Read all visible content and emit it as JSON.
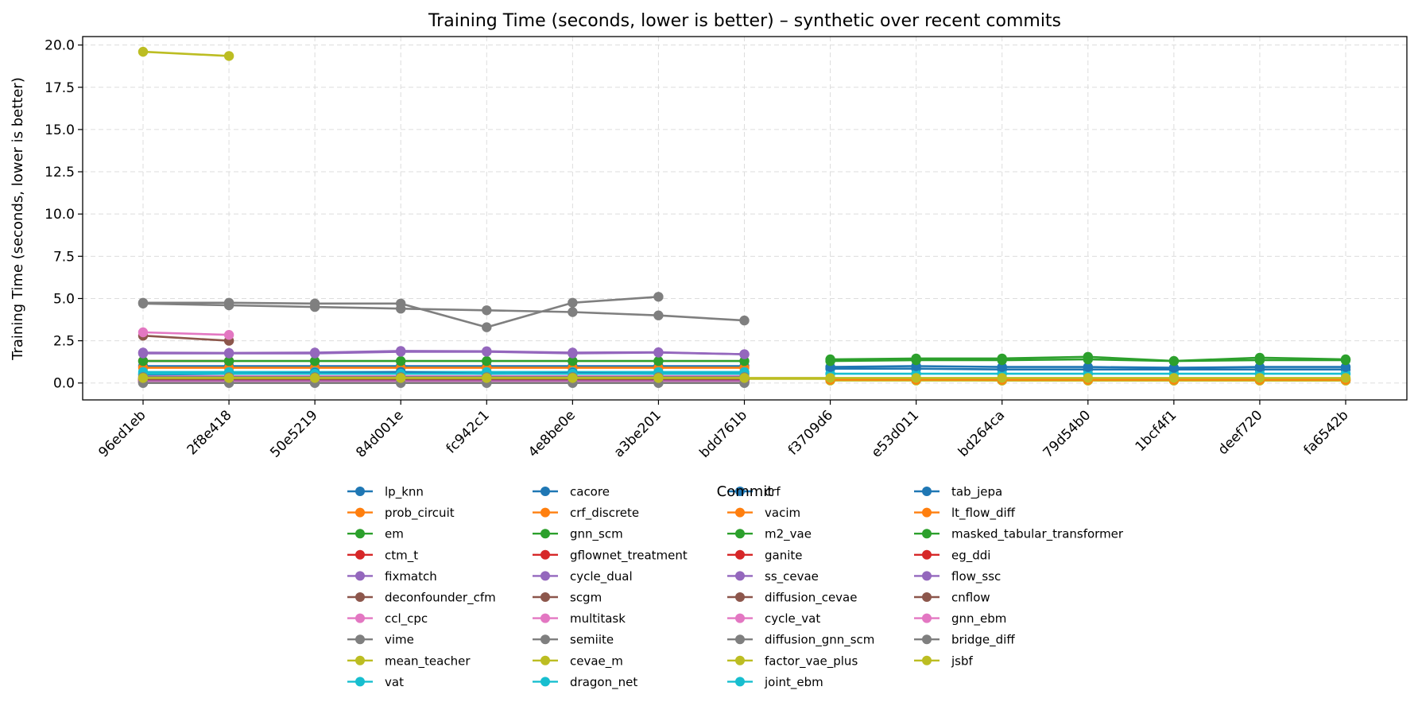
{
  "chart_data": {
    "type": "line",
    "title": "Training Time (seconds, lower is better) – synthetic over recent commits",
    "xlabel": "Commit",
    "ylabel": "Training Time (seconds, lower is better)",
    "ylim": [
      -1.0,
      20.5
    ],
    "yticks": [
      "0.0",
      "2.5",
      "5.0",
      "7.5",
      "10.0",
      "12.5",
      "15.0",
      "17.5",
      "20.0"
    ],
    "grid": true,
    "legend_placement": "bottom-center",
    "legend_columns": 4,
    "categories": [
      "96ed1eb",
      "2f8e418",
      "50e5219",
      "84d001e",
      "fc942c1",
      "4e8be0e",
      "a3be201",
      "bdd761b",
      "f3709d6",
      "e53d011",
      "bd264ca",
      "79d54b0",
      "1bcf4f1",
      "deef720",
      "fa6542b"
    ],
    "series": [
      {
        "name": "lp_knn",
        "color": "#1f77b4",
        "values": [
          1.0,
          1.0,
          1.0,
          1.0,
          1.0,
          1.0,
          1.0,
          1.0,
          null,
          null,
          null,
          null,
          null,
          null,
          null
        ]
      },
      {
        "name": "prob_circuit",
        "color": "#ff7f0e",
        "values": [
          0.9,
          0.9,
          0.9,
          0.9,
          0.9,
          0.9,
          0.9,
          0.9,
          null,
          null,
          null,
          null,
          null,
          null,
          null
        ]
      },
      {
        "name": "em",
        "color": "#2ca02c",
        "values": [
          0.02,
          0.02,
          0.02,
          0.02,
          0.02,
          0.02,
          0.02,
          0.02,
          null,
          null,
          null,
          null,
          null,
          null,
          null
        ]
      },
      {
        "name": "ctm_t",
        "color": "#d62728",
        "values": [
          1.3,
          1.3,
          null,
          null,
          null,
          null,
          null,
          null,
          null,
          null,
          null,
          null,
          null,
          null,
          null
        ]
      },
      {
        "name": "fixmatch",
        "color": "#9467bd",
        "values": [
          1.8,
          1.78,
          1.8,
          1.9,
          1.88,
          1.8,
          1.82,
          1.7,
          null,
          null,
          null,
          null,
          null,
          null,
          null
        ]
      },
      {
        "name": "deconfounder_cfm",
        "color": "#8c564b",
        "values": [
          2.8,
          2.5,
          null,
          null,
          null,
          null,
          null,
          null,
          null,
          null,
          null,
          null,
          null,
          null,
          null
        ]
      },
      {
        "name": "ccl_cpc",
        "color": "#e377c2",
        "values": [
          0.4,
          0.4,
          0.4,
          0.4,
          0.4,
          0.4,
          0.4,
          0.4,
          null,
          null,
          null,
          null,
          null,
          null,
          null
        ]
      },
      {
        "name": "vime",
        "color": "#7f7f7f",
        "values": [
          4.7,
          4.6,
          4.5,
          4.4,
          4.3,
          4.2,
          4.0,
          3.7,
          null,
          null,
          null,
          null,
          null,
          null,
          null
        ]
      },
      {
        "name": "mean_teacher",
        "color": "#bcbd22",
        "values": [
          19.6,
          19.35,
          null,
          null,
          null,
          null,
          null,
          null,
          null,
          null,
          null,
          null,
          null,
          null,
          null
        ]
      },
      {
        "name": "vat",
        "color": "#17becf",
        "values": [
          0.65,
          0.65,
          0.65,
          0.65,
          0.65,
          0.65,
          0.65,
          0.65,
          null,
          null,
          null,
          null,
          null,
          null,
          null
        ]
      },
      {
        "name": "cacore",
        "color": "#1f77b4",
        "values": [
          0.5,
          0.55,
          0.6,
          0.65,
          0.55,
          0.6,
          0.55,
          0.55,
          null,
          null,
          null,
          null,
          null,
          null,
          null
        ]
      },
      {
        "name": "crf_discrete",
        "color": "#ff7f0e",
        "values": [
          0.1,
          0.1,
          0.1,
          0.1,
          0.1,
          0.1,
          0.1,
          0.1,
          null,
          null,
          null,
          null,
          null,
          null,
          null
        ]
      },
      {
        "name": "gnn_scm",
        "color": "#2ca02c",
        "values": [
          1.3,
          1.3,
          1.3,
          1.3,
          1.3,
          1.3,
          1.3,
          1.3,
          null,
          null,
          null,
          null,
          null,
          null,
          null
        ]
      },
      {
        "name": "gflownet_treatment",
        "color": "#d62728",
        "values": [
          0.2,
          0.2,
          0.2,
          0.2,
          0.2,
          0.2,
          0.2,
          0.2,
          null,
          null,
          null,
          null,
          null,
          null,
          null
        ]
      },
      {
        "name": "cycle_dual",
        "color": "#9467bd",
        "values": [
          1.75,
          1.75,
          1.75,
          1.85,
          1.85,
          1.75,
          1.8,
          1.7,
          null,
          null,
          null,
          null,
          null,
          null,
          null
        ]
      },
      {
        "name": "scgm",
        "color": "#8c564b",
        "values": [
          0.3,
          0.3,
          0.3,
          0.3,
          0.3,
          0.3,
          0.3,
          0.3,
          null,
          null,
          null,
          null,
          null,
          null,
          null
        ]
      },
      {
        "name": "multitask",
        "color": "#e377c2",
        "values": [
          3.0,
          2.85,
          null,
          null,
          null,
          null,
          null,
          null,
          null,
          null,
          null,
          null,
          null,
          null,
          null
        ]
      },
      {
        "name": "semiite",
        "color": "#7f7f7f",
        "values": [
          4.75,
          4.75,
          4.7,
          4.7,
          3.3,
          4.75,
          5.1,
          null,
          null,
          null,
          null,
          null,
          null,
          null,
          null
        ]
      },
      {
        "name": "cevae_m",
        "color": "#bcbd22",
        "values": [
          0.25,
          0.25,
          0.25,
          0.25,
          0.25,
          0.25,
          0.25,
          0.25,
          0.25,
          0.25,
          0.25,
          0.25,
          0.25,
          0.25,
          0.25
        ]
      },
      {
        "name": "dragon_net",
        "color": "#17becf",
        "values": [
          0.55,
          0.55,
          0.55,
          0.55,
          0.55,
          0.55,
          0.55,
          0.55,
          null,
          null,
          null,
          null,
          null,
          null,
          null
        ]
      },
      {
        "name": "crf",
        "color": "#1f77b4",
        "values": [
          null,
          null,
          null,
          null,
          null,
          null,
          null,
          null,
          0.85,
          0.85,
          0.8,
          0.8,
          0.8,
          0.8,
          0.8
        ]
      },
      {
        "name": "vacim",
        "color": "#ff7f0e",
        "values": [
          null,
          null,
          null,
          null,
          null,
          null,
          null,
          null,
          0.2,
          0.2,
          0.15,
          0.15,
          0.15,
          0.15,
          0.15
        ]
      },
      {
        "name": "m2_vae",
        "color": "#2ca02c",
        "values": [
          null,
          null,
          null,
          null,
          null,
          null,
          null,
          null,
          1.4,
          1.45,
          1.45,
          1.55,
          1.3,
          1.5,
          1.4
        ]
      },
      {
        "name": "ganite",
        "color": "#d62728",
        "values": [
          0.05,
          0.05,
          0.05,
          0.05,
          0.05,
          0.05,
          0.05,
          0.05,
          null,
          null,
          null,
          null,
          null,
          null,
          null
        ]
      },
      {
        "name": "ss_cevae",
        "color": "#9467bd",
        "values": [
          0.15,
          0.15,
          0.15,
          0.15,
          0.15,
          0.15,
          0.15,
          0.15,
          null,
          null,
          null,
          null,
          null,
          null,
          null
        ]
      },
      {
        "name": "diffusion_cevae",
        "color": "#8c564b",
        "values": [
          0.2,
          0.2,
          0.2,
          0.2,
          0.2,
          0.2,
          0.2,
          0.2,
          null,
          null,
          null,
          null,
          null,
          null,
          null
        ]
      },
      {
        "name": "cycle_vat",
        "color": "#e377c2",
        "values": [
          0.1,
          0.1,
          0.1,
          0.1,
          0.1,
          0.1,
          0.1,
          0.1,
          null,
          null,
          null,
          null,
          null,
          null,
          null
        ]
      },
      {
        "name": "diffusion_gnn_scm",
        "color": "#7f7f7f",
        "values": [
          0.35,
          0.35,
          0.35,
          0.35,
          0.35,
          0.35,
          0.35,
          0.35,
          null,
          null,
          null,
          null,
          null,
          null,
          null
        ]
      },
      {
        "name": "factor_vae_plus",
        "color": "#bcbd22",
        "values": [
          null,
          null,
          null,
          null,
          null,
          null,
          null,
          null,
          0.15,
          0.15,
          0.15,
          0.15,
          0.15,
          0.15,
          0.15
        ]
      },
      {
        "name": "joint_ebm",
        "color": "#17becf",
        "values": [
          null,
          null,
          null,
          null,
          null,
          null,
          null,
          null,
          0.55,
          0.55,
          0.55,
          0.55,
          0.55,
          0.55,
          0.55
        ]
      },
      {
        "name": "tab_jepa",
        "color": "#1f77b4",
        "values": [
          null,
          null,
          null,
          null,
          null,
          null,
          null,
          null,
          0.95,
          1.0,
          0.95,
          0.95,
          0.9,
          0.95,
          0.95
        ]
      },
      {
        "name": "lt_flow_diff",
        "color": "#ff7f0e",
        "values": [
          null,
          null,
          null,
          null,
          null,
          null,
          null,
          null,
          0.2,
          0.2,
          0.2,
          0.2,
          0.2,
          0.2,
          0.2
        ]
      },
      {
        "name": "masked_tabular_transformer",
        "color": "#2ca02c",
        "values": [
          null,
          null,
          null,
          null,
          null,
          null,
          null,
          null,
          1.3,
          1.35,
          1.35,
          1.4,
          1.3,
          1.35,
          1.35
        ]
      },
      {
        "name": "eg_ddi",
        "color": "#d62728",
        "values": [
          0.15,
          0.15,
          0.15,
          0.15,
          0.15,
          0.15,
          0.15,
          0.15,
          null,
          null,
          null,
          null,
          null,
          null,
          null
        ]
      },
      {
        "name": "flow_ssc",
        "color": "#9467bd",
        "values": [
          0.1,
          0.1,
          0.1,
          0.1,
          0.1,
          0.1,
          0.1,
          0.1,
          null,
          null,
          null,
          null,
          null,
          null,
          null
        ]
      },
      {
        "name": "cnflow",
        "color": "#8c564b",
        "values": [
          0.25,
          0.25,
          0.25,
          0.25,
          0.25,
          0.25,
          0.25,
          0.25,
          null,
          null,
          null,
          null,
          null,
          null,
          null
        ]
      },
      {
        "name": "gnn_ebm",
        "color": "#e377c2",
        "values": [
          0.05,
          0.05,
          0.05,
          0.05,
          0.05,
          0.05,
          0.05,
          0.05,
          null,
          null,
          null,
          null,
          null,
          null,
          null
        ]
      },
      {
        "name": "bridge_diff",
        "color": "#7f7f7f",
        "values": [
          0.0,
          0.0,
          0.0,
          0.0,
          0.0,
          0.0,
          0.0,
          0.0,
          null,
          null,
          null,
          null,
          null,
          null,
          null
        ]
      },
      {
        "name": "jsbf",
        "color": "#bcbd22",
        "values": [
          0.3,
          0.3,
          0.3,
          0.3,
          0.3,
          0.3,
          0.3,
          0.3,
          0.3,
          0.3,
          0.3,
          0.3,
          0.3,
          0.3,
          0.3
        ]
      }
    ]
  }
}
